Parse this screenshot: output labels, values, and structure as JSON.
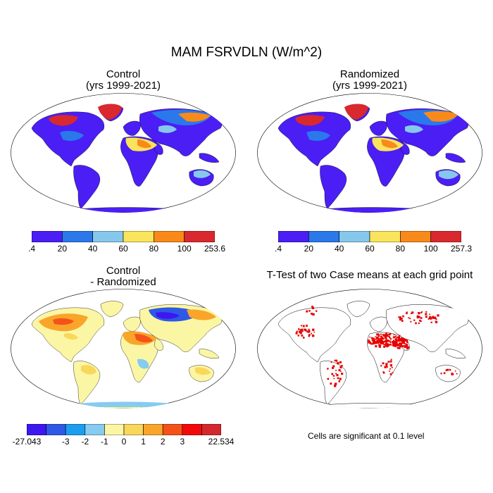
{
  "figure_title": "MAM FSRVDLN (W/m^2)",
  "panels": [
    {
      "id": "control",
      "title_line1": "Control",
      "title_line2": "(yrs 1999-2021)",
      "colorbar": {
        "labels": [
          ".4",
          "20",
          "40",
          "60",
          "80",
          "100",
          "253.6"
        ],
        "colors": [
          "#4a1ef5",
          "#2a78ea",
          "#86c8ec",
          "#f9e45c",
          "#f98a1a",
          "#d9282e"
        ]
      }
    },
    {
      "id": "randomized",
      "title_line1": "Randomized",
      "title_line2": "(yrs 1999-2021)",
      "colorbar": {
        "labels": [
          ".4",
          "20",
          "40",
          "60",
          "80",
          "100",
          "257.3"
        ],
        "colors": [
          "#4a1ef5",
          "#2a78ea",
          "#86c8ec",
          "#f9e45c",
          "#f98a1a",
          "#d9282e"
        ]
      }
    },
    {
      "id": "difference",
      "title_line1": "Control",
      "title_line2": "- Randomized",
      "colorbar": {
        "labels": [
          "-27.043",
          "-3",
          "-2",
          "-1",
          "0",
          "1",
          "2",
          "3",
          "22.534"
        ],
        "colors": [
          "#3e16f0",
          "#2e58e6",
          "#1b9ef0",
          "#86cbf0",
          "#fbf6a4",
          "#f9d75a",
          "#f9a52a",
          "#f5521a",
          "#f20a0a",
          "#d3292c"
        ]
      }
    },
    {
      "id": "ttest",
      "title_line1": "T-Test of two Case means at each grid point",
      "note": "Cells are significant at 0.1 level"
    }
  ],
  "colors": {
    "ocean": "#ffffff",
    "coast": "#000000",
    "significant": "#e60000"
  }
}
